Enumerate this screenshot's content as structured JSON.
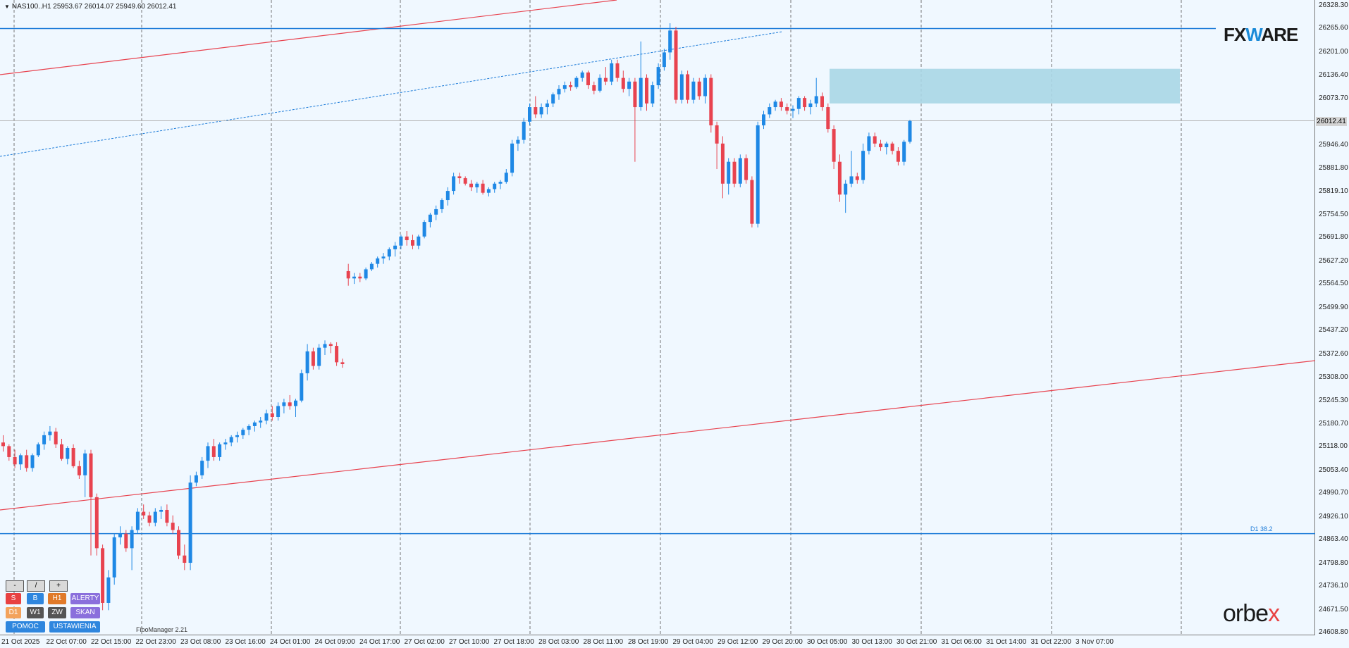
{
  "symbol_info": "NAS100..H1  25953.67 26014.07 25949.60 26012.41",
  "price_axis": [
    "26328.30",
    "26265.60",
    "26201.00",
    "26136.40",
    "26073.70",
    "26012.41",
    "25946.40",
    "25881.80",
    "25819.10",
    "25754.50",
    "25691.80",
    "25627.20",
    "25564.50",
    "25499.90",
    "25437.20",
    "25372.60",
    "25308.00",
    "25245.30",
    "25180.70",
    "25118.00",
    "25053.40",
    "24990.70",
    "24926.10",
    "24863.40",
    "24798.80",
    "24736.10",
    "24671.50",
    "24608.80"
  ],
  "current_price": "26012.41",
  "time_axis": [
    "21 Oct 2025",
    "22 Oct 07:00",
    "22 Oct 15:00",
    "22 Oct 23:00",
    "23 Oct 08:00",
    "23 Oct 16:00",
    "24 Oct 01:00",
    "24 Oct 09:00",
    "24 Oct 17:00",
    "27 Oct 02:00",
    "27 Oct 10:00",
    "27 Oct 18:00",
    "28 Oct 03:00",
    "28 Oct 11:00",
    "28 Oct 19:00",
    "29 Oct 04:00",
    "29 Oct 12:00",
    "29 Oct 20:00",
    "30 Oct 05:00",
    "30 Oct 13:00",
    "30 Oct 21:00",
    "31 Oct 06:00",
    "31 Oct 14:00",
    "31 Oct 22:00",
    "3 Nov 07:00"
  ],
  "fibo_level_label": "D1 38.2",
  "fibo_manager_label": "FiboManager 2.21",
  "logos": {
    "fxware_pre": "FX",
    "fxware_w": "W",
    "fxware_post": "ARE",
    "orbex_pre": "orbe",
    "orbex_x": "x"
  },
  "zoom_controls": [
    "-",
    "/",
    "+"
  ],
  "panel": {
    "row1": [
      {
        "label": "S",
        "color": "#e84141"
      },
      {
        "label": "B",
        "color": "#2e86de"
      },
      {
        "label": "H1",
        "color": "#e07a2a"
      },
      {
        "label": "ALERTY",
        "color": "#8a6fdc"
      }
    ],
    "row2": [
      {
        "label": "D1",
        "color": "#f3a35c"
      },
      {
        "label": "W1",
        "color": "#555555"
      },
      {
        "label": "ZW",
        "color": "#555555"
      },
      {
        "label": "SKAN",
        "color": "#8a6fdc"
      }
    ],
    "row3": [
      {
        "label": "POMOC",
        "color": "#2e86de"
      },
      {
        "label": "USTAWIENIA",
        "color": "#2e86de"
      }
    ]
  },
  "colors": {
    "background": "#f0f8ff",
    "bull": "#1e88e5",
    "bear": "#e8434f",
    "level_line": "#1a7ad8",
    "channel_line": "#e8434f",
    "zone": "#a9d6e5"
  },
  "chart_data": {
    "type": "candlestick",
    "symbol": "NAS100..",
    "timeframe": "H1",
    "ylim": [
      24608.8,
      26328.3
    ],
    "horizontal_levels": [
      26265.6,
      24880.0
    ],
    "zone": {
      "from": 26060.0,
      "to": 26155.0
    },
    "candles": [
      [
        25130,
        25150,
        25105,
        25120
      ],
      [
        25120,
        25125,
        25080,
        25090
      ],
      [
        25090,
        25110,
        25060,
        25070
      ],
      [
        25070,
        25100,
        25055,
        25095
      ],
      [
        25095,
        25110,
        25050,
        25060
      ],
      [
        25060,
        25100,
        25050,
        25095
      ],
      [
        25095,
        25130,
        25090,
        25125
      ],
      [
        25125,
        25160,
        25110,
        25150
      ],
      [
        25150,
        25175,
        25135,
        25160
      ],
      [
        25160,
        25170,
        25115,
        25125
      ],
      [
        25125,
        25140,
        25080,
        25085
      ],
      [
        25085,
        25120,
        25070,
        25115
      ],
      [
        25115,
        25125,
        25060,
        25065
      ],
      [
        25065,
        25080,
        25030,
        25040
      ],
      [
        25040,
        25110,
        24980,
        25100
      ],
      [
        25100,
        25110,
        24820,
        24980
      ],
      [
        24980,
        24990,
        24820,
        24840
      ],
      [
        24840,
        24850,
        24670,
        24690
      ],
      [
        24690,
        24780,
        24670,
        24760
      ],
      [
        24760,
        24880,
        24740,
        24870
      ],
      [
        24870,
        24900,
        24850,
        24880
      ],
      [
        24880,
        24890,
        24830,
        24840
      ],
      [
        24840,
        24900,
        24780,
        24890
      ],
      [
        24890,
        24950,
        24880,
        24940
      ],
      [
        24940,
        24960,
        24920,
        24930
      ],
      [
        24930,
        24940,
        24900,
        24910
      ],
      [
        24910,
        24950,
        24900,
        24940
      ],
      [
        24940,
        24955,
        24920,
        24945
      ],
      [
        24945,
        24960,
        24900,
        24910
      ],
      [
        24910,
        24930,
        24880,
        24890
      ],
      [
        24890,
        24900,
        24810,
        24820
      ],
      [
        24820,
        24850,
        24780,
        24800
      ],
      [
        24800,
        25040,
        24780,
        25020
      ],
      [
        25020,
        25050,
        25010,
        25040
      ],
      [
        25040,
        25090,
        25030,
        25080
      ],
      [
        25080,
        25130,
        25060,
        25120
      ],
      [
        25120,
        25140,
        25080,
        25090
      ],
      [
        25090,
        25130,
        25080,
        25125
      ],
      [
        25125,
        25140,
        25110,
        25130
      ],
      [
        25130,
        25150,
        25120,
        25145
      ],
      [
        25145,
        25160,
        25130,
        25150
      ],
      [
        25150,
        25170,
        25140,
        25165
      ],
      [
        25165,
        25180,
        25150,
        25175
      ],
      [
        25175,
        25190,
        25160,
        25185
      ],
      [
        25185,
        25200,
        25170,
        25190
      ],
      [
        25190,
        25220,
        25180,
        25210
      ],
      [
        25210,
        25230,
        25190,
        25200
      ],
      [
        25200,
        25240,
        25190,
        25230
      ],
      [
        25230,
        25250,
        25210,
        25240
      ],
      [
        25240,
        25260,
        25220,
        25230
      ],
      [
        25230,
        25250,
        25200,
        25245
      ],
      [
        25245,
        25330,
        25240,
        25320
      ],
      [
        25320,
        25400,
        25300,
        25380
      ],
      [
        25380,
        25390,
        25330,
        25340
      ],
      [
        25340,
        25400,
        25330,
        25390
      ],
      [
        25390,
        25410,
        25370,
        25400
      ],
      [
        25400,
        25405,
        25375,
        25395
      ],
      [
        25395,
        25405,
        25340,
        25350
      ],
      [
        25350,
        25360,
        25335,
        25345
      ],
      [
        25600,
        25620,
        25560,
        25580
      ],
      [
        25580,
        25595,
        25565,
        25585
      ],
      [
        25585,
        25595,
        25570,
        25580
      ],
      [
        25580,
        25610,
        25575,
        25605
      ],
      [
        25605,
        25625,
        25600,
        25620
      ],
      [
        25620,
        25640,
        25610,
        25635
      ],
      [
        25635,
        25650,
        25620,
        25640
      ],
      [
        25640,
        25665,
        25630,
        25660
      ],
      [
        25660,
        25680,
        25640,
        25670
      ],
      [
        25670,
        25700,
        25660,
        25695
      ],
      [
        25695,
        25710,
        25670,
        25685
      ],
      [
        25685,
        25700,
        25660,
        25670
      ],
      [
        25670,
        25700,
        25660,
        25695
      ],
      [
        25695,
        25740,
        25690,
        25735
      ],
      [
        25735,
        25760,
        25720,
        25755
      ],
      [
        25755,
        25780,
        25740,
        25770
      ],
      [
        25770,
        25800,
        25760,
        25795
      ],
      [
        25795,
        25830,
        25780,
        25820
      ],
      [
        25820,
        25870,
        25810,
        25860
      ],
      [
        25860,
        25870,
        25840,
        25855
      ],
      [
        25855,
        25860,
        25835,
        25840
      ],
      [
        25840,
        25850,
        25820,
        25830
      ],
      [
        25830,
        25845,
        25815,
        25840
      ],
      [
        25840,
        25850,
        25810,
        25815
      ],
      [
        25815,
        25830,
        25805,
        25825
      ],
      [
        25825,
        25845,
        25815,
        25840
      ],
      [
        25840,
        25850,
        25825,
        25845
      ],
      [
        25845,
        25880,
        25840,
        25870
      ],
      [
        25870,
        25960,
        25860,
        25950
      ],
      [
        25950,
        25970,
        25930,
        25960
      ],
      [
        25960,
        26020,
        25950,
        26010
      ],
      [
        26010,
        26060,
        26000,
        26050
      ],
      [
        26050,
        26080,
        26020,
        26030
      ],
      [
        26030,
        26060,
        26020,
        26050
      ],
      [
        26050,
        26070,
        26030,
        26060
      ],
      [
        26060,
        26090,
        26050,
        26085
      ],
      [
        26085,
        26110,
        26070,
        26100
      ],
      [
        26100,
        26120,
        26090,
        26110
      ],
      [
        26110,
        26120,
        26095,
        26105
      ],
      [
        26105,
        26135,
        26100,
        26130
      ],
      [
        26130,
        26150,
        26120,
        26145
      ],
      [
        26145,
        26150,
        26100,
        26110
      ],
      [
        26110,
        26120,
        26085,
        26095
      ],
      [
        26095,
        26140,
        26090,
        26130
      ],
      [
        26130,
        26160,
        26110,
        26120
      ],
      [
        26120,
        26180,
        26110,
        26170
      ],
      [
        26170,
        26180,
        26120,
        26130
      ],
      [
        26130,
        26150,
        26090,
        26100
      ],
      [
        26100,
        26130,
        26080,
        26120
      ],
      [
        26120,
        26130,
        25900,
        26050
      ],
      [
        26050,
        26230,
        26040,
        26130
      ],
      [
        26130,
        26140,
        26040,
        26060
      ],
      [
        26060,
        26120,
        26050,
        26110
      ],
      [
        26110,
        26170,
        26100,
        26160
      ],
      [
        26160,
        26210,
        26150,
        26200
      ],
      [
        26200,
        26280,
        26180,
        26260
      ],
      [
        26260,
        26270,
        26060,
        26070
      ],
      [
        26070,
        26150,
        26060,
        26140
      ],
      [
        26140,
        26150,
        26060,
        26070
      ],
      [
        26070,
        26130,
        26060,
        26120
      ],
      [
        26120,
        26130,
        26070,
        26080
      ],
      [
        26080,
        26140,
        26060,
        26130
      ],
      [
        26130,
        26140,
        25980,
        26000
      ],
      [
        26000,
        26010,
        25880,
        25950
      ],
      [
        25950,
        25970,
        25800,
        25840
      ],
      [
        25840,
        25910,
        25810,
        25900
      ],
      [
        25900,
        25910,
        25830,
        25840
      ],
      [
        25840,
        25920,
        25830,
        25910
      ],
      [
        25910,
        25920,
        25840,
        25850
      ],
      [
        25850,
        25860,
        25720,
        25730
      ],
      [
        25730,
        26010,
        25720,
        26000
      ],
      [
        26000,
        26040,
        25990,
        26030
      ],
      [
        26030,
        26060,
        26020,
        26050
      ],
      [
        26050,
        26070,
        26040,
        26065
      ],
      [
        26065,
        26075,
        26040,
        26050
      ],
      [
        26050,
        26060,
        26030,
        26040
      ],
      [
        26040,
        26055,
        26020,
        26045
      ],
      [
        26045,
        26080,
        26030,
        26075
      ],
      [
        26075,
        26080,
        26040,
        26050
      ],
      [
        26050,
        26070,
        26030,
        26060
      ],
      [
        26060,
        26130,
        26050,
        26080
      ],
      [
        26080,
        26090,
        26040,
        26050
      ],
      [
        26050,
        26060,
        25980,
        25990
      ],
      [
        25990,
        26000,
        25880,
        25900
      ],
      [
        25900,
        25920,
        25790,
        25810
      ],
      [
        25810,
        25850,
        25760,
        25840
      ],
      [
        25840,
        25930,
        25830,
        25860
      ],
      [
        25860,
        25870,
        25840,
        25850
      ],
      [
        25850,
        25950,
        25840,
        25930
      ],
      [
        25930,
        25980,
        25920,
        25970
      ],
      [
        25970,
        25980,
        25940,
        25950
      ],
      [
        25950,
        25960,
        25930,
        25940
      ],
      [
        25940,
        25955,
        25920,
        25950
      ],
      [
        25950,
        25955,
        25920,
        25930
      ],
      [
        25930,
        25940,
        25890,
        25900
      ],
      [
        25900,
        25960,
        25890,
        25955
      ],
      [
        25955,
        26015,
        25950,
        26012
      ]
    ]
  }
}
